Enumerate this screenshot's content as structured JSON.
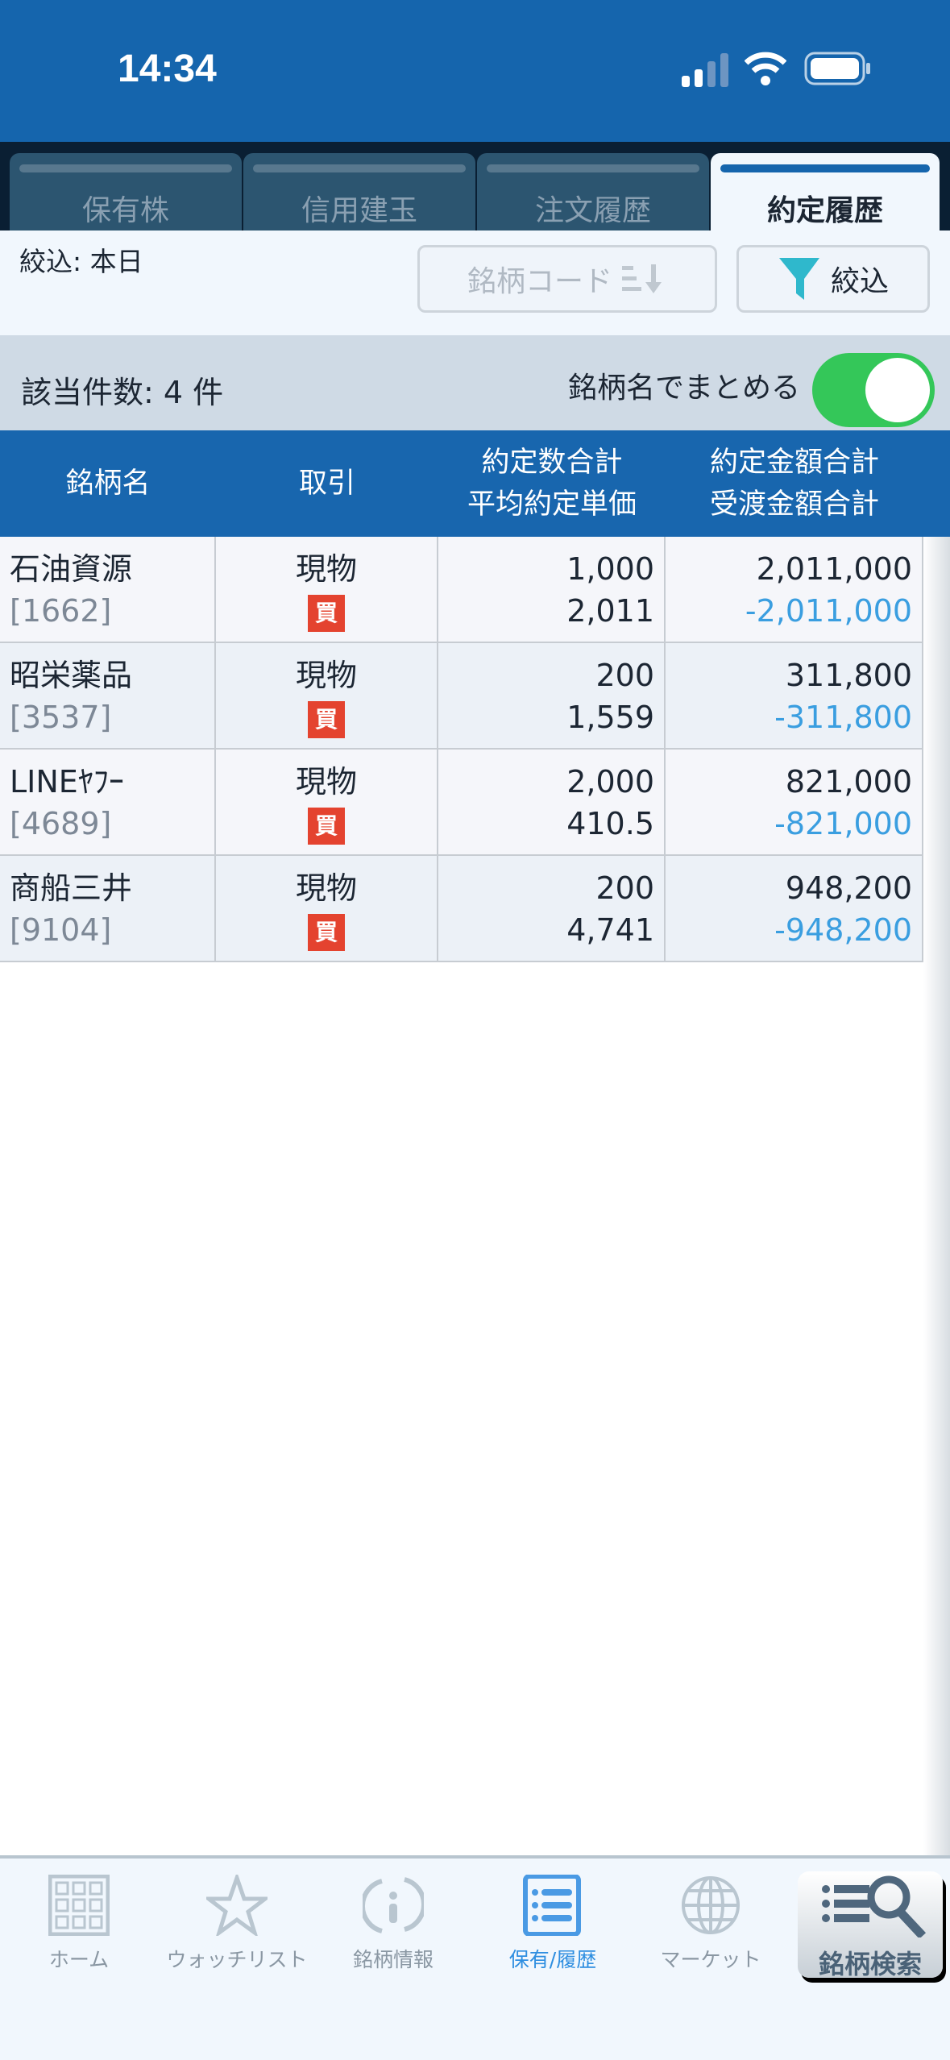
{
  "status": {
    "time": "14:34"
  },
  "tabs": [
    {
      "label": "保有株"
    },
    {
      "label": "信用建玉"
    },
    {
      "label": "注文履歴"
    },
    {
      "label": "約定履歴",
      "active": true
    }
  ],
  "filter": {
    "label": "絞込: 本日",
    "sort_button": "銘柄コード",
    "filter_button": "絞込"
  },
  "summary": {
    "count": "該当件数: 4 件",
    "group_label": "銘柄名でまとめる",
    "group_on": true
  },
  "table": {
    "headers": [
      {
        "l1": "銘柄名",
        "l2": ""
      },
      {
        "l1": "取引",
        "l2": ""
      },
      {
        "l1": "約定数合計",
        "l2": "平均約定単価"
      },
      {
        "l1": "約定金額合計",
        "l2": "受渡金額合計"
      }
    ],
    "rows": [
      {
        "name": "石油資源",
        "code": "[1662]",
        "type": "現物",
        "side": "買",
        "qty": "1,000",
        "price": "2,011",
        "amount": "2,011,000",
        "settle": "-2,011,000"
      },
      {
        "name": "昭栄薬品",
        "code": "[3537]",
        "type": "現物",
        "side": "買",
        "qty": "200",
        "price": "1,559",
        "amount": "311,800",
        "settle": "-311,800"
      },
      {
        "name": "LINEﾔﾌｰ",
        "code": "[4689]",
        "type": "現物",
        "side": "買",
        "qty": "2,000",
        "price": "410.5",
        "amount": "821,000",
        "settle": "-821,000"
      },
      {
        "name": "商船三井",
        "code": "[9104]",
        "type": "現物",
        "side": "買",
        "qty": "200",
        "price": "4,741",
        "amount": "948,200",
        "settle": "-948,200"
      }
    ]
  },
  "nav": {
    "items": [
      {
        "label": "ホーム",
        "icon": "grid-icon"
      },
      {
        "label": "ウォッチリスト",
        "icon": "star-icon"
      },
      {
        "label": "銘柄情報",
        "icon": "info-cycle-icon"
      },
      {
        "label": "保有/履歴",
        "icon": "list-icon",
        "active": true
      },
      {
        "label": "マーケット",
        "icon": "globe-icon"
      }
    ],
    "search_label": "銘柄検索"
  },
  "colors": {
    "brand": "#1565ad",
    "toggle": "#34c759",
    "buy": "#e4432f",
    "negative": "#3a9ee0"
  }
}
